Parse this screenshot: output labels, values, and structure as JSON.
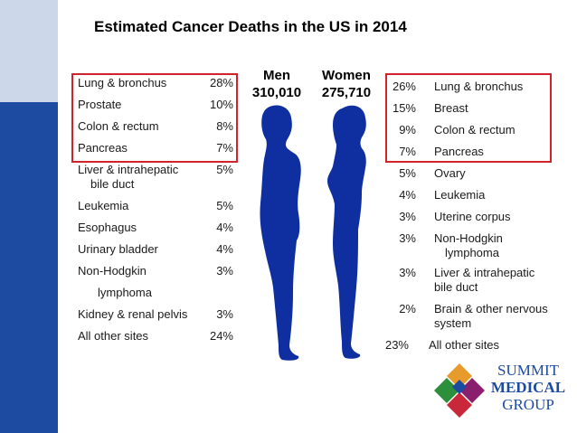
{
  "title": "Estimated Cancer Deaths in the US in 2014",
  "men": {
    "heading": "Men",
    "total": "310,010",
    "rows": [
      {
        "label": "Lung & bronchus",
        "pct": "28%"
      },
      {
        "label": "Prostate",
        "pct": "10%"
      },
      {
        "label": "Colon & rectum",
        "pct": "8%"
      },
      {
        "label": "Pancreas",
        "pct": "7%"
      },
      {
        "label": "Liver & intrahepatic",
        "label2": "bile duct",
        "pct": "5%"
      },
      {
        "label": "Leukemia",
        "pct": "5%"
      },
      {
        "label": "Esophagus",
        "pct": "4%"
      },
      {
        "label": "Urinary bladder",
        "pct": "4%"
      },
      {
        "label": "Non-Hodgkin",
        "label2": "lymphoma",
        "pct": "3%"
      },
      {
        "label": "Kidney & renal pelvis",
        "pct": "3%"
      },
      {
        "label": "All other sites",
        "pct": "24%"
      }
    ]
  },
  "women": {
    "heading": "Women",
    "total": "275,710",
    "rows": [
      {
        "label": "Lung & bronchus",
        "pct": "26%"
      },
      {
        "label": "Breast",
        "pct": "15%"
      },
      {
        "label": "Colon & rectum",
        "pct": "9%"
      },
      {
        "label": "Pancreas",
        "pct": "7%"
      },
      {
        "label": "Ovary",
        "pct": "5%"
      },
      {
        "label": "Leukemia",
        "pct": "4%"
      },
      {
        "label": "Uterine corpus",
        "pct": "3%"
      },
      {
        "label": "Non-Hodgkin",
        "label2": "lymphoma",
        "pct": "3%"
      },
      {
        "label": "Liver & intrahepatic",
        "label2": "bile duct",
        "pct": "3%"
      },
      {
        "label": "Brain & other nervous",
        "label2": "system",
        "pct": "2%"
      },
      {
        "label": "All other sites",
        "pct": "23%"
      }
    ]
  },
  "logo": {
    "line1": "SUMMIT",
    "line2": "MEDICAL",
    "line3": "GROUP"
  },
  "colors": {
    "accent_dark": "#1c4ba1",
    "accent_light": "#cdd7ea",
    "highlight_box": "#d2232a",
    "silhouette": "#0f2fa0"
  }
}
